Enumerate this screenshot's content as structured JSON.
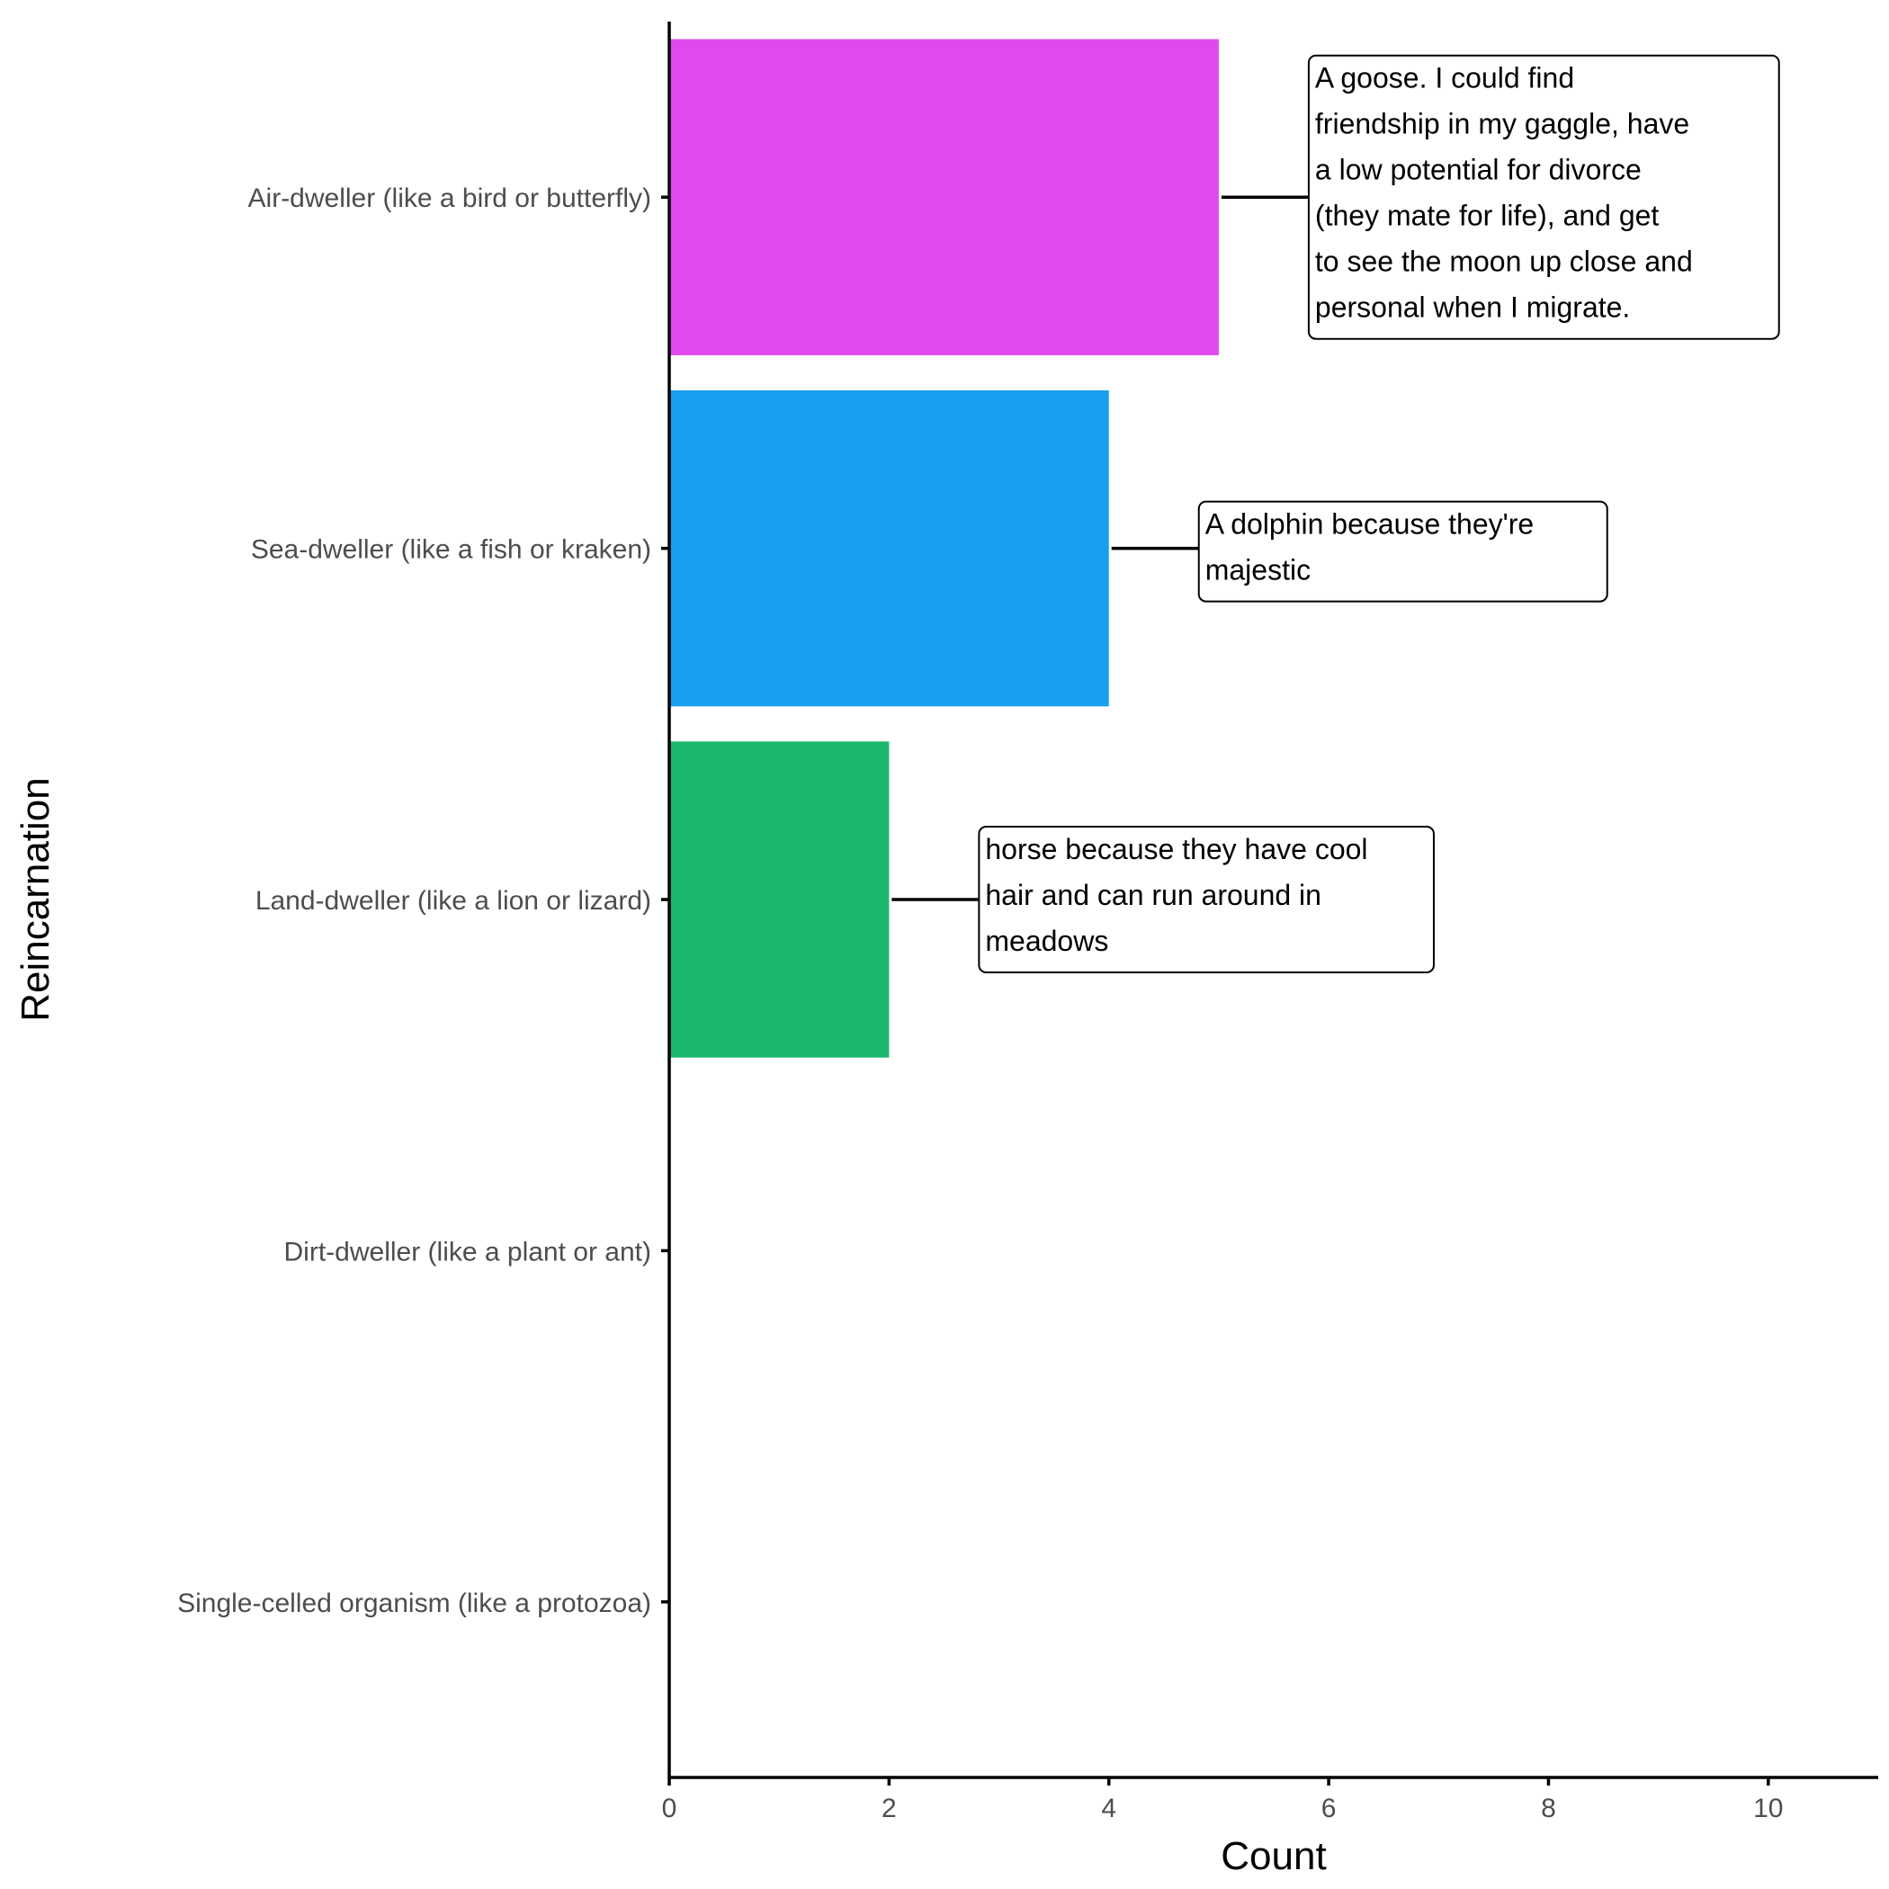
{
  "chart_data": {
    "type": "bar",
    "orientation": "horizontal",
    "categories": [
      "Air-dweller (like a bird or butterfly)",
      "Sea-dweller (like a fish or kraken)",
      "Land-dweller (like a lion or lizard)",
      "Dirt-dweller (like a plant or ant)",
      "Single-celled organism (like a protozoa)"
    ],
    "values": [
      5,
      4,
      2,
      0,
      0
    ],
    "colors": [
      "#df49f0",
      "#179ff0",
      "#1bb76e",
      "#888888",
      "#888888"
    ],
    "xlabel": "Count",
    "ylabel": "Reincarnation",
    "xlim": [
      0,
      11
    ],
    "xticks": [
      0,
      2,
      4,
      6,
      8,
      10
    ],
    "grid": false,
    "legend": "none",
    "annotations": [
      {
        "category": "Air-dweller (like a bird or butterfly)",
        "lines": [
          "A goose. I could find",
          "friendship in my gaggle, have",
          "a low potential for divorce",
          "(they mate for life), and get",
          "to see the moon up close and",
          "personal when I migrate."
        ]
      },
      {
        "category": "Sea-dweller (like a fish or kraken)",
        "lines": [
          "A dolphin because they're",
          "majestic"
        ]
      },
      {
        "category": "Land-dweller (like a lion or lizard)",
        "lines": [
          "horse because they have cool",
          "hair and can run around in",
          "meadows"
        ]
      }
    ]
  }
}
